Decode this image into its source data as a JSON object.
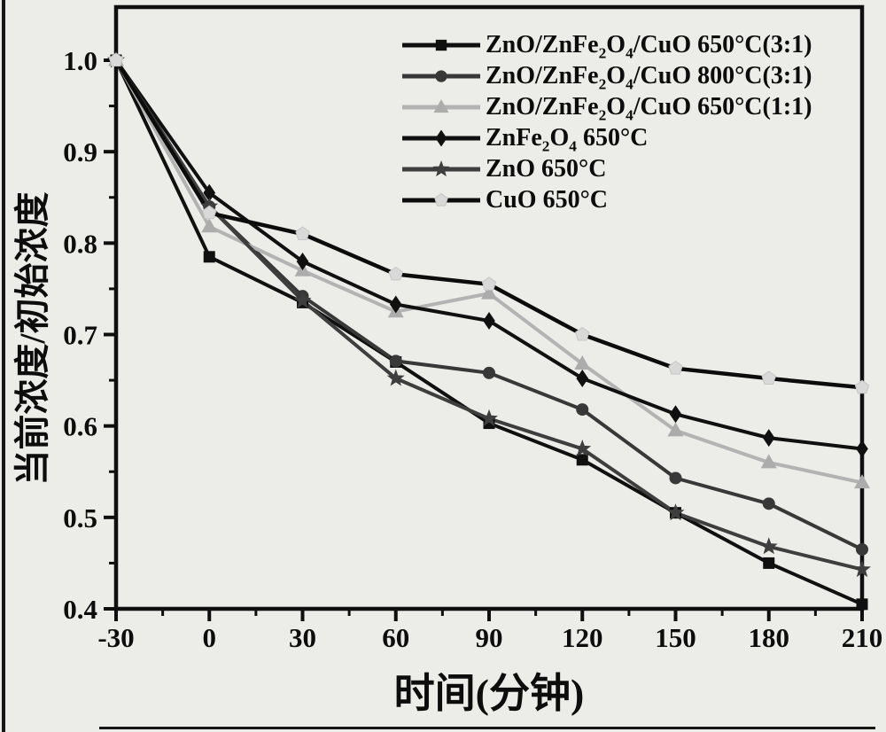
{
  "figure": {
    "background_color": "#ECECE9",
    "frame_color": "#0f0f0f",
    "text_color": "#0d0d0d"
  },
  "chart_data": {
    "type": "line",
    "title": "",
    "xlabel": "时间(分钟)",
    "ylabel": "当前浓度/初始浓度",
    "xlim": [
      -30,
      210
    ],
    "ylim": [
      0.4,
      1.0
    ],
    "x_ticks": [
      -30,
      0,
      30,
      60,
      90,
      120,
      150,
      180,
      210
    ],
    "x_tick_labels": [
      "-30",
      "0",
      "30",
      "60",
      "90",
      "120",
      "150",
      "180",
      "210"
    ],
    "x_minor_step": 15,
    "y_ticks": [
      0.4,
      0.5,
      0.6,
      0.7,
      0.8,
      0.9,
      1.0
    ],
    "y_tick_labels": [
      "0.4",
      "0.5",
      "0.6",
      "0.7",
      "0.8",
      "0.9",
      "1.0"
    ],
    "y_minor_step": 0.05,
    "grid": false,
    "legend_position": "top-right",
    "x": [
      -30,
      0,
      30,
      60,
      90,
      120,
      150,
      180,
      210
    ],
    "series": [
      {
        "name": "ZnO/ZnFe₂O₄/CuO 650°C(3:1)",
        "marker": "square",
        "line_color": "#101010",
        "marker_color": "#101010",
        "values": [
          1.0,
          0.785,
          0.735,
          0.67,
          0.603,
          0.563,
          0.505,
          0.45,
          0.405
        ]
      },
      {
        "name": "ZnO/ZnFe₂O₄/CuO 800°C(3:1)",
        "marker": "circle",
        "line_color": "#383838",
        "marker_color": "#383838",
        "values": [
          1.0,
          0.84,
          0.742,
          0.671,
          0.658,
          0.618,
          0.543,
          0.515,
          0.465
        ]
      },
      {
        "name": "ZnO/ZnFe₂O₄/CuO 650°C(1:1)",
        "marker": "triangle",
        "line_color": "#b3b3b3",
        "marker_color": "#acacac",
        "values": [
          1.0,
          0.818,
          0.77,
          0.725,
          0.745,
          0.668,
          0.595,
          0.56,
          0.538
        ]
      },
      {
        "name": "ZnFe₂O₄ 650°C",
        "marker": "diamond",
        "line_color": "#101010",
        "marker_color": "#101010",
        "values": [
          1.0,
          0.855,
          0.78,
          0.733,
          0.715,
          0.652,
          0.613,
          0.587,
          0.575
        ]
      },
      {
        "name": "ZnO 650°C",
        "marker": "star",
        "line_color": "#3e3e3e",
        "marker_color": "#3e3e3e",
        "values": [
          1.0,
          0.84,
          0.737,
          0.652,
          0.608,
          0.575,
          0.505,
          0.468,
          0.443
        ]
      },
      {
        "name": "CuO 650°C",
        "marker": "pentagon",
        "line_color": "#0c0c0c",
        "marker_color": "#d9d9d9",
        "values": [
          1.0,
          0.833,
          0.81,
          0.766,
          0.755,
          0.7,
          0.663,
          0.652,
          0.642
        ]
      }
    ]
  }
}
